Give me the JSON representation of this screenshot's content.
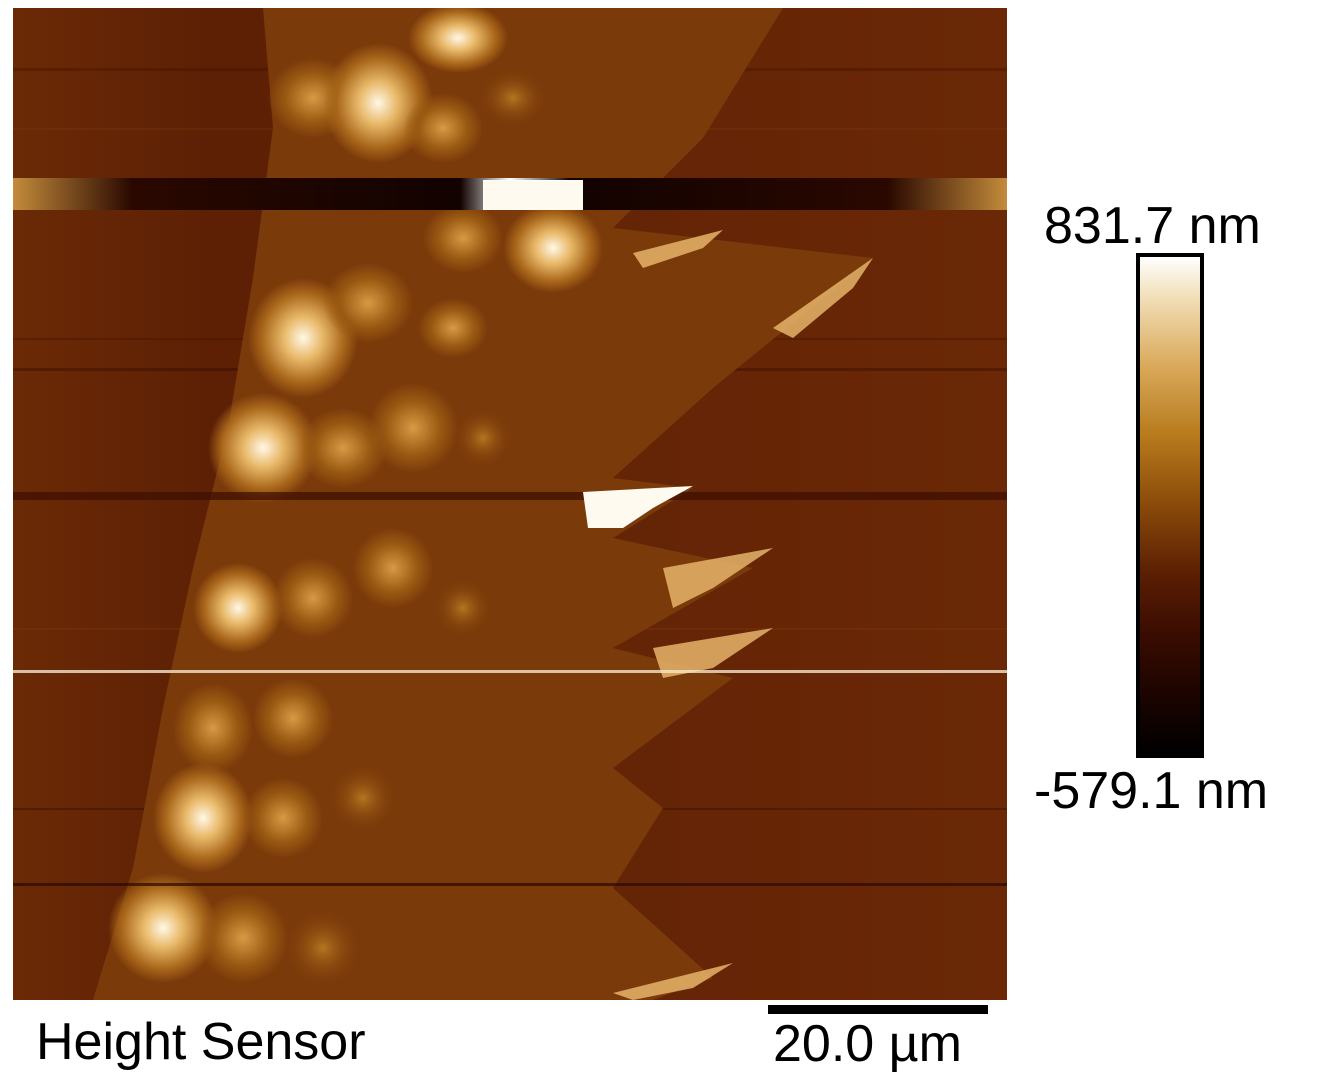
{
  "image": {
    "channel": "Height Sensor",
    "scale_bar_label": "20.0 µm"
  },
  "colorbar": {
    "max_label": "831.7 nm",
    "min_label": "-579.1 nm",
    "colors": [
      "#ffffff",
      "#f2dfb8",
      "#d9a95a",
      "#b77a1c",
      "#8a4a0a",
      "#5a1e03",
      "#3a0c01",
      "#1c0400",
      "#000000"
    ]
  }
}
